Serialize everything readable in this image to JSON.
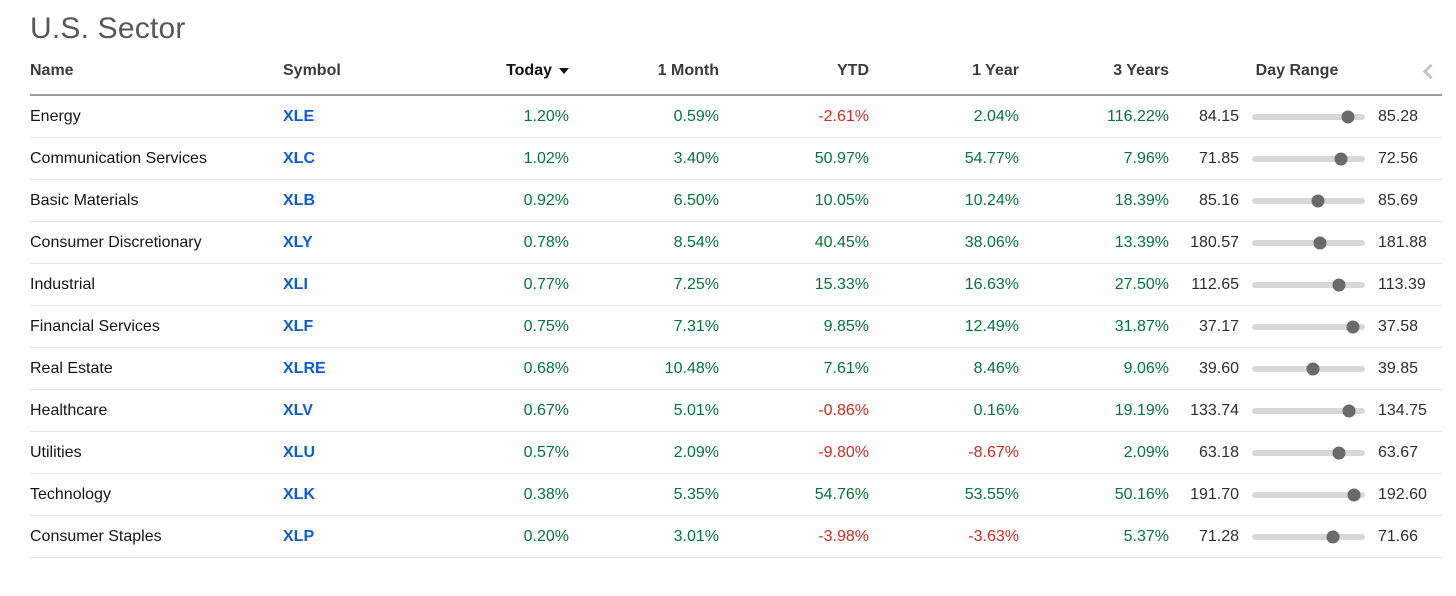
{
  "page": {
    "title": "U.S. Sector"
  },
  "colors": {
    "positive": "#00763b",
    "negative": "#d3291f",
    "symbol_link": "#0b5dd7",
    "slider_track": "#d8d8d8",
    "slider_dot": "#6a6a6a"
  },
  "icons": {
    "sort_caret": "caret-down-icon",
    "scroll_left": "chevron-left-icon"
  },
  "table": {
    "headers": {
      "name": "Name",
      "symbol": "Symbol",
      "today": "Today",
      "one_month": "1 Month",
      "ytd": "YTD",
      "one_year": "1 Year",
      "three_years": "3 Years",
      "day_range": "Day Range"
    },
    "sorted_by": "Today",
    "rows": [
      {
        "name": "Energy",
        "symbol": "XLE",
        "today": "1.20%",
        "one_month": "0.59%",
        "ytd": "-2.61%",
        "one_year": "2.04%",
        "three_years": "116.22%",
        "day_low": "84.15",
        "day_high": "85.28",
        "range_pct": 85
      },
      {
        "name": "Communication Services",
        "symbol": "XLC",
        "today": "1.02%",
        "one_month": "3.40%",
        "ytd": "50.97%",
        "one_year": "54.77%",
        "three_years": "7.96%",
        "day_low": "71.85",
        "day_high": "72.56",
        "range_pct": 79
      },
      {
        "name": "Basic Materials",
        "symbol": "XLB",
        "today": "0.92%",
        "one_month": "6.50%",
        "ytd": "10.05%",
        "one_year": "10.24%",
        "three_years": "18.39%",
        "day_low": "85.16",
        "day_high": "85.69",
        "range_pct": 58
      },
      {
        "name": "Consumer Discretionary",
        "symbol": "XLY",
        "today": "0.78%",
        "one_month": "8.54%",
        "ytd": "40.45%",
        "one_year": "38.06%",
        "three_years": "13.39%",
        "day_low": "180.57",
        "day_high": "181.88",
        "range_pct": 60
      },
      {
        "name": "Industrial",
        "symbol": "XLI",
        "today": "0.77%",
        "one_month": "7.25%",
        "ytd": "15.33%",
        "one_year": "16.63%",
        "three_years": "27.50%",
        "day_low": "112.65",
        "day_high": "113.39",
        "range_pct": 77
      },
      {
        "name": "Financial Services",
        "symbol": "XLF",
        "today": "0.75%",
        "one_month": "7.31%",
        "ytd": "9.85%",
        "one_year": "12.49%",
        "three_years": "31.87%",
        "day_low": "37.17",
        "day_high": "37.58",
        "range_pct": 89
      },
      {
        "name": "Real Estate",
        "symbol": "XLRE",
        "today": "0.68%",
        "one_month": "10.48%",
        "ytd": "7.61%",
        "one_year": "8.46%",
        "three_years": "9.06%",
        "day_low": "39.60",
        "day_high": "39.85",
        "range_pct": 54
      },
      {
        "name": "Healthcare",
        "symbol": "XLV",
        "today": "0.67%",
        "one_month": "5.01%",
        "ytd": "-0.86%",
        "one_year": "0.16%",
        "three_years": "19.19%",
        "day_low": "133.74",
        "day_high": "134.75",
        "range_pct": 86
      },
      {
        "name": "Utilities",
        "symbol": "XLU",
        "today": "0.57%",
        "one_month": "2.09%",
        "ytd": "-9.80%",
        "one_year": "-8.67%",
        "three_years": "2.09%",
        "day_low": "63.18",
        "day_high": "63.67",
        "range_pct": 77
      },
      {
        "name": "Technology",
        "symbol": "XLK",
        "today": "0.38%",
        "one_month": "5.35%",
        "ytd": "54.76%",
        "one_year": "53.55%",
        "three_years": "50.16%",
        "day_low": "191.70",
        "day_high": "192.60",
        "range_pct": 90
      },
      {
        "name": "Consumer Staples",
        "symbol": "XLP",
        "today": "0.20%",
        "one_month": "3.01%",
        "ytd": "-3.98%",
        "one_year": "-3.63%",
        "three_years": "5.37%",
        "day_low": "71.28",
        "day_high": "71.66",
        "range_pct": 72
      }
    ]
  }
}
